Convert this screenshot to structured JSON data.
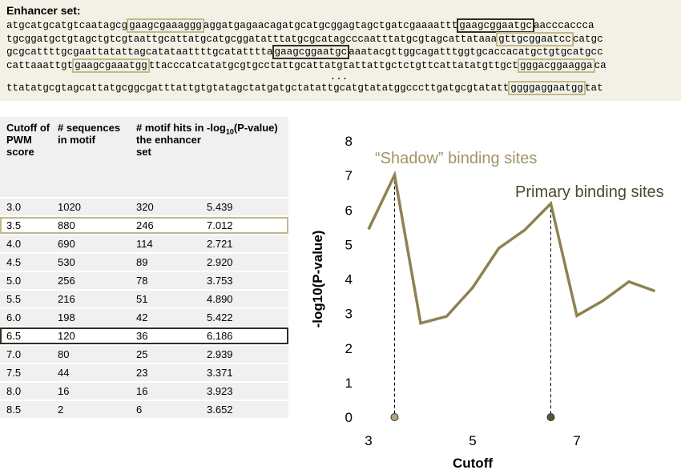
{
  "enhancer": {
    "title": "Enhancer set:",
    "lines": [
      [
        {
          "text": "atgcatgcatgtcaatagcg"
        },
        {
          "text": "gaagcgaaaggg",
          "color": "#c2b98a"
        },
        {
          "text": "aggatgagaacagatgcatgcggagtagctgatcgaaaattt"
        },
        {
          "text": "gaagcggaatgc",
          "color": "#2f2f22"
        },
        {
          "text": "aacccaccca"
        }
      ],
      [
        {
          "text": "tgcggatgctgtagctgtcgtaattgcattatgcatgcggatatttatgcgcatagcccaatttatgcgtagcattataaa"
        },
        {
          "text": "gttgcggaatcc",
          "color": "#c2b98a"
        },
        {
          "text": "catgc"
        }
      ],
      [
        {
          "text": "gcgcattttgcgaattatattagcatataattttgcatatttta"
        },
        {
          "text": "gaagcggaatgc",
          "color": "#2f2f22"
        },
        {
          "text": "aaatacgttggcagatttggtgcaccacatgctgtgcatgcc"
        }
      ],
      [
        {
          "text": "cattaaattgt"
        },
        {
          "text": "gaagcgaaatgg",
          "color": "#c2b98a"
        },
        {
          "text": "ttacccatcatatgcgtgcctattgcattatgtattattgctctgttcattatatgttgct"
        },
        {
          "text": "gggacggaagga",
          "color": "#c2b98a"
        },
        {
          "text": "ca"
        }
      ],
      [
        {
          "text": "..."
        }
      ],
      [
        {
          "text": "ttatatgcgtagcattatgcggcgatttattgtgtatagctatgatgctatattgcatgtatatggcccttgatgcgtatatt"
        },
        {
          "text": "ggggaggaatgg",
          "color": "#c2b98a"
        },
        {
          "text": "tat"
        }
      ]
    ]
  },
  "table": {
    "headers": [
      "Cutoff of PWM score",
      "# sequences in motif",
      "# motif hits in the enhancer set",
      [
        "-log",
        "10",
        "(P-value)"
      ]
    ],
    "rows": [
      {
        "cells": [
          "3.0",
          "1020",
          "320",
          "5.439"
        ]
      },
      {
        "cells": [
          "3.5",
          "880",
          "246",
          "7.012"
        ],
        "border": "#c2b98a"
      },
      {
        "cells": [
          "4.0",
          "690",
          "114",
          "2.721"
        ]
      },
      {
        "cells": [
          "4.5",
          "530",
          "89",
          "2.920"
        ]
      },
      {
        "cells": [
          "5.0",
          "256",
          "78",
          "3.753"
        ]
      },
      {
        "cells": [
          "5.5",
          "216",
          "51",
          "4.890"
        ]
      },
      {
        "cells": [
          "6.0",
          "198",
          "42",
          "5.422"
        ]
      },
      {
        "cells": [
          "6.5",
          "120",
          "36",
          "6.186"
        ],
        "border": "#2f2f22"
      },
      {
        "cells": [
          "7.0",
          "80",
          "25",
          "2.939"
        ]
      },
      {
        "cells": [
          "7.5",
          "44",
          "23",
          "3.371"
        ]
      },
      {
        "cells": [
          "8.0",
          "16",
          "16",
          "3.923"
        ]
      },
      {
        "cells": [
          "8.5",
          "2",
          "6",
          "3.652"
        ]
      }
    ]
  },
  "chart_data": {
    "type": "line",
    "x": [
      3.0,
      3.5,
      4.0,
      4.5,
      5.0,
      5.5,
      6.0,
      6.5,
      7.0,
      7.5,
      8.0,
      8.5
    ],
    "values": [
      5.439,
      7.012,
      2.721,
      2.92,
      3.753,
      4.89,
      5.422,
      6.186,
      2.939,
      3.371,
      3.923,
      3.652
    ],
    "color": "#8e8252",
    "xlim": [
      3,
      8.5
    ],
    "xticks": [
      3,
      5,
      7
    ],
    "ylim": [
      0,
      8
    ],
    "yticks": [
      0,
      1,
      2,
      3,
      4,
      5,
      6,
      7,
      8
    ],
    "xlabel": "Cutoff",
    "ylabel": "-log10(P-value)",
    "annotations": [
      {
        "text": "“Shadow” binding sites",
        "color": "#a09462"
      },
      {
        "text": "Primary binding sites",
        "color": "#4a4a2c"
      }
    ],
    "markers": [
      {
        "x": 3.5,
        "color": "#b3a777"
      },
      {
        "x": 6.5,
        "color": "#555535"
      }
    ]
  }
}
